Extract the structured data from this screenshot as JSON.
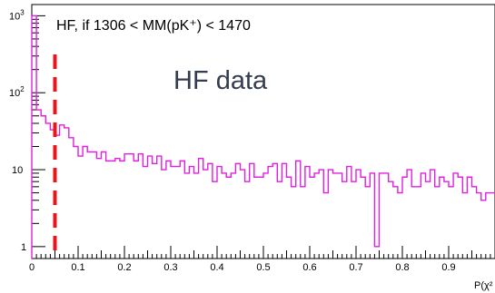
{
  "chart_data": {
    "type": "line",
    "title": "HF, if 1306 < MM(pK⁺) < 1470",
    "annotation": "HF data",
    "xlabel": "P(χ²",
    "ylabel": "",
    "xlim": [
      0,
      1
    ],
    "ylim": [
      0.7,
      1400
    ],
    "yscale": "log",
    "x_ticks": [
      "0",
      "0.1",
      "0.2",
      "0.3",
      "0.4",
      "0.5",
      "0.6",
      "0.7",
      "0.8",
      "0.9"
    ],
    "y_ticks": [
      {
        "base": "10",
        "exp": "3"
      },
      {
        "base": "10",
        "exp": "2"
      },
      {
        "base": "10",
        "exp": ""
      },
      {
        "base": "1",
        "exp": ""
      }
    ],
    "cut_line_x": 0.05,
    "bin_width": 0.01,
    "series": [
      {
        "name": "",
        "color": "#e01fe0",
        "values": [
          1000,
          60,
          50,
          40,
          33,
          28,
          38,
          35,
          26,
          20,
          15,
          20,
          17,
          17,
          14,
          17,
          13,
          13,
          14,
          13,
          16,
          16,
          13,
          16,
          11,
          15,
          12,
          15,
          10,
          13,
          11,
          11,
          13,
          9,
          11,
          9,
          14,
          10,
          12,
          7,
          11,
          9,
          8,
          9,
          12,
          10,
          7,
          12,
          8,
          8,
          9,
          11,
          12,
          7,
          12,
          8,
          6,
          13,
          6,
          11,
          8,
          9,
          10,
          5,
          10,
          9,
          9,
          7,
          11,
          7,
          10,
          8,
          6,
          9,
          1,
          9,
          9,
          7,
          6,
          5,
          8,
          10,
          6,
          6,
          9,
          7,
          10,
          6,
          8,
          7,
          6,
          9,
          8,
          5,
          8,
          6,
          5,
          4,
          5,
          5
        ]
      }
    ],
    "colors": {
      "series": "#e01fe0",
      "cut_line": "#e6161a",
      "axis": "#000000",
      "annotation": "#353c4f"
    }
  }
}
